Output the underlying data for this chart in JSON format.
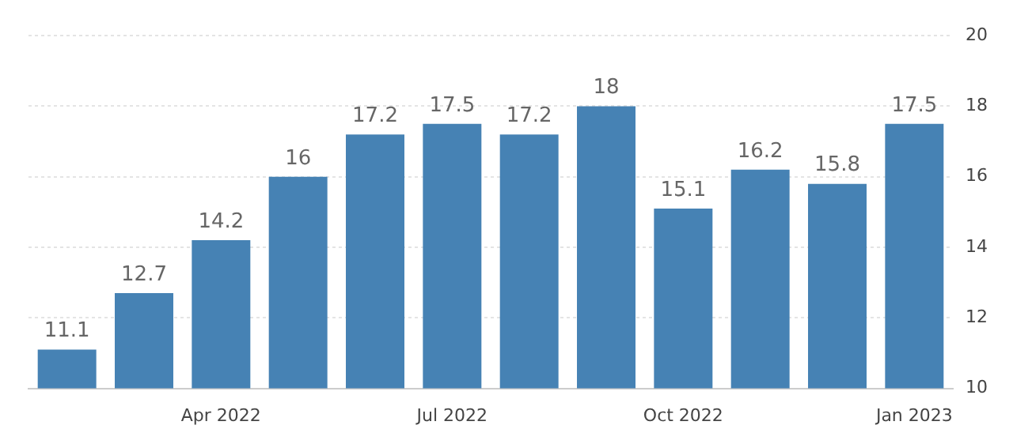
{
  "chart_data": {
    "type": "bar",
    "categories": [
      null,
      null,
      "Apr 2022",
      null,
      null,
      "Jul 2022",
      null,
      null,
      "Oct 2022",
      null,
      null,
      "Jan 2023"
    ],
    "values": [
      11.1,
      12.7,
      14.2,
      16,
      17.2,
      17.5,
      17.2,
      18,
      15.1,
      16.2,
      15.8,
      17.5
    ],
    "color": "#4682b4",
    "ylim": [
      10,
      20
    ],
    "yticks": [
      10,
      12,
      14,
      16,
      18,
      20
    ],
    "grid": "y",
    "data_labels": true
  }
}
